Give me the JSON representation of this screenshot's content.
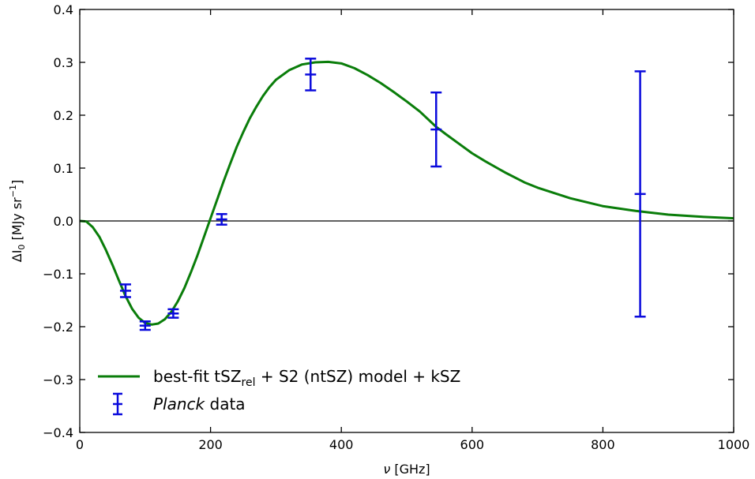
{
  "chart_data": {
    "type": "line",
    "xlabel_italic": "ν",
    "xlabel_rest": " [GHz]",
    "ylabel_main": "ΔI",
    "ylabel_sub": "0",
    "ylabel_unit": " [MJy sr",
    "ylabel_sup": "−1",
    "ylabel_close": "]",
    "xlim": [
      0,
      1000
    ],
    "ylim": [
      -0.4,
      0.4
    ],
    "x_ticks": [
      0,
      200,
      400,
      600,
      800,
      1000
    ],
    "x_tick_labels": [
      "0",
      "200",
      "400",
      "600",
      "800",
      "1000"
    ],
    "y_ticks": [
      -0.4,
      -0.3,
      -0.2,
      -0.1,
      0.0,
      0.1,
      0.2,
      0.3,
      0.4
    ],
    "y_tick_labels": [
      "−0.4",
      "−0.3",
      "−0.2",
      "−0.1",
      "0.0",
      "0.1",
      "0.2",
      "0.3",
      "0.4"
    ],
    "zero_line": true,
    "grid": false,
    "legend_position": "lower-left",
    "series": [
      {
        "kind": "curve",
        "color": "#0a7d0a",
        "legend": {
          "prefix": "best-fit tSZ",
          "sub": "rel",
          "suffix": " + S2 (ntSZ) model + kSZ"
        },
        "x": [
          0,
          10,
          20,
          30,
          40,
          50,
          60,
          70,
          80,
          90,
          100,
          110,
          120,
          130,
          140,
          150,
          160,
          170,
          180,
          190,
          200,
          210,
          220,
          230,
          240,
          250,
          260,
          270,
          280,
          290,
          300,
          320,
          340,
          360,
          380,
          400,
          420,
          440,
          460,
          480,
          500,
          520,
          545,
          560,
          580,
          600,
          620,
          650,
          680,
          700,
          750,
          800,
          850,
          900,
          950,
          1000
        ],
        "y": [
          0.0,
          -0.001,
          -0.012,
          -0.03,
          -0.055,
          -0.083,
          -0.113,
          -0.142,
          -0.166,
          -0.183,
          -0.193,
          -0.196,
          -0.194,
          -0.186,
          -0.172,
          -0.152,
          -0.127,
          -0.097,
          -0.065,
          -0.03,
          0.005,
          0.04,
          0.075,
          0.108,
          0.14,
          0.168,
          0.194,
          0.216,
          0.236,
          0.253,
          0.267,
          0.285,
          0.296,
          0.3,
          0.301,
          0.298,
          0.289,
          0.276,
          0.261,
          0.244,
          0.226,
          0.207,
          0.178,
          0.164,
          0.146,
          0.128,
          0.113,
          0.092,
          0.073,
          0.063,
          0.043,
          0.028,
          0.019,
          0.012,
          0.008,
          0.005
        ]
      },
      {
        "kind": "errorbar",
        "color": "#0a0adc",
        "legend": {
          "italic": "Planck",
          "suffix": " data"
        },
        "points": [
          {
            "x": 70,
            "y": -0.132,
            "yerr": 0.012
          },
          {
            "x": 100,
            "y": -0.198,
            "yerr": 0.008
          },
          {
            "x": 143,
            "y": -0.175,
            "yerr": 0.008
          },
          {
            "x": 217,
            "y": 0.003,
            "yerr": 0.01
          },
          {
            "x": 353,
            "y": 0.277,
            "yerr": 0.03
          },
          {
            "x": 545,
            "y": 0.173,
            "yerr": 0.07
          },
          {
            "x": 857,
            "y": 0.051,
            "yerr": 0.232
          }
        ]
      }
    ]
  }
}
